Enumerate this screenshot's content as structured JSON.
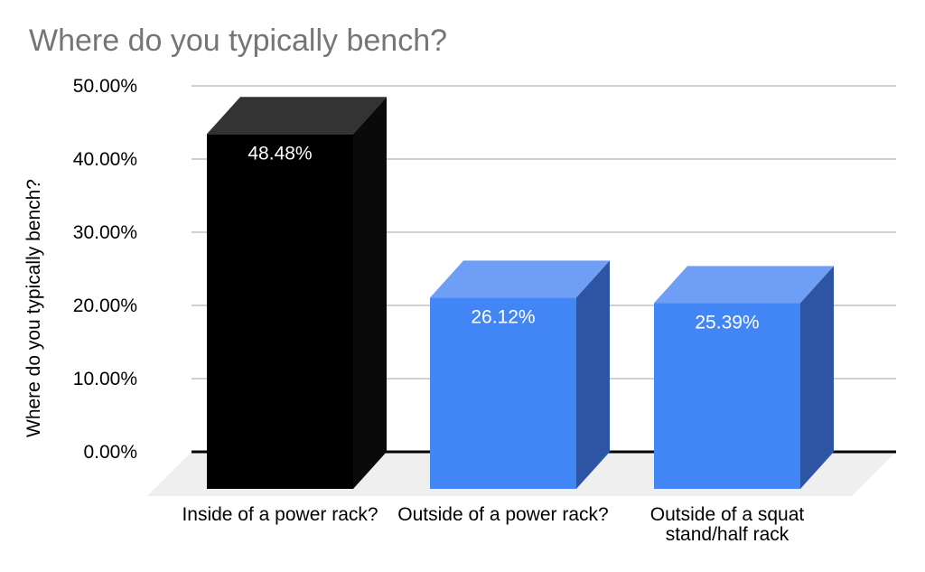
{
  "chart_data": {
    "type": "bar",
    "projection": "3d",
    "title": "Where do you typically bench?",
    "ylabel": "Where do you typically bench?",
    "xlabel": "",
    "categories": [
      "Inside of a power rack?",
      "Outside of a power rack?",
      "Outside of a squat stand/half rack"
    ],
    "category_lines": [
      [
        "Inside of a power rack?"
      ],
      [
        "Outside of a power rack?"
      ],
      [
        "Outside of a squat",
        "stand/half rack"
      ]
    ],
    "values": [
      48.48,
      26.12,
      25.39
    ],
    "value_labels": [
      "48.48%",
      "26.12%",
      "25.39%"
    ],
    "ylim": [
      0,
      50
    ],
    "yticks": [
      0,
      10,
      20,
      30,
      40,
      50
    ],
    "ytick_labels": [
      "0.00%",
      "10.00%",
      "20.00%",
      "30.00%",
      "40.00%",
      "50.00%"
    ],
    "grid": true,
    "legend": "none",
    "colors": {
      "background": "#ffffff",
      "title": "#757575",
      "axis_text": "#000000",
      "value_label": "#ffffff",
      "gridline": "#d0d0d0",
      "baseline": "#000000",
      "floor": "#efefef",
      "bars": [
        {
          "front": "#000000",
          "top": "#333333",
          "side": "#0a0a0a"
        },
        {
          "front": "#4285f4",
          "top": "#6f9ef5",
          "side": "#2e55a4"
        },
        {
          "front": "#4285f4",
          "top": "#6f9ef5",
          "side": "#2e55a4"
        }
      ]
    }
  }
}
